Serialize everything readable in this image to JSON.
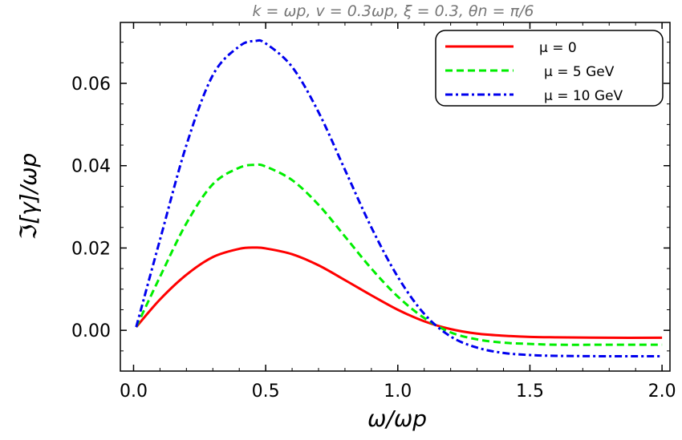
{
  "chart_data": {
    "type": "line",
    "title": "k = ωp, v = 0.3ωp, ξ = 0.3, θn = π/6",
    "xlabel": "ω/ωp",
    "ylabel": "ℑ[γ]/ωp",
    "xlim": [
      -0.05,
      2.03
    ],
    "ylim": [
      -0.0099,
      0.0748
    ],
    "xticks": [
      "0.0",
      "0.5",
      "1.0",
      "1.5",
      "2.0"
    ],
    "yticks": [
      "0.00",
      "0.02",
      "0.04",
      "0.06"
    ],
    "grid": false,
    "legend_placement": "top-right",
    "x": [
      0.01,
      0.1,
      0.2,
      0.3,
      0.4,
      0.46,
      0.5,
      0.6,
      0.7,
      0.8,
      0.9,
      1.0,
      1.1,
      1.2,
      1.3,
      1.4,
      1.5,
      1.6,
      1.8,
      2.0
    ],
    "series": [
      {
        "name": "μ = 0",
        "color": "#ff0000",
        "style": "solid",
        "values": [
          0.0008,
          0.0075,
          0.0135,
          0.0178,
          0.0198,
          0.0201,
          0.0199,
          0.0185,
          0.0158,
          0.0122,
          0.0085,
          0.005,
          0.0022,
          0.0003,
          -0.0008,
          -0.0013,
          -0.0016,
          -0.0017,
          -0.0018,
          -0.0018
        ]
      },
      {
        "name": "μ = 5 GeV",
        "color": "#00ee00",
        "style": "dashed",
        "values": [
          0.0008,
          0.013,
          0.026,
          0.0355,
          0.0395,
          0.0402,
          0.0398,
          0.0365,
          0.0305,
          0.0228,
          0.015,
          0.0082,
          0.003,
          -0.0005,
          -0.0022,
          -0.003,
          -0.0033,
          -0.0035,
          -0.0035,
          -0.0035
        ]
      },
      {
        "name": "μ = 10 GeV",
        "color": "#0000ee",
        "style": "dashdot",
        "values": [
          0.0008,
          0.022,
          0.045,
          0.062,
          0.069,
          0.0703,
          0.0697,
          0.064,
          0.053,
          0.039,
          0.025,
          0.013,
          0.004,
          -0.0015,
          -0.0042,
          -0.0055,
          -0.006,
          -0.0062,
          -0.0063,
          -0.0063
        ]
      }
    ]
  }
}
